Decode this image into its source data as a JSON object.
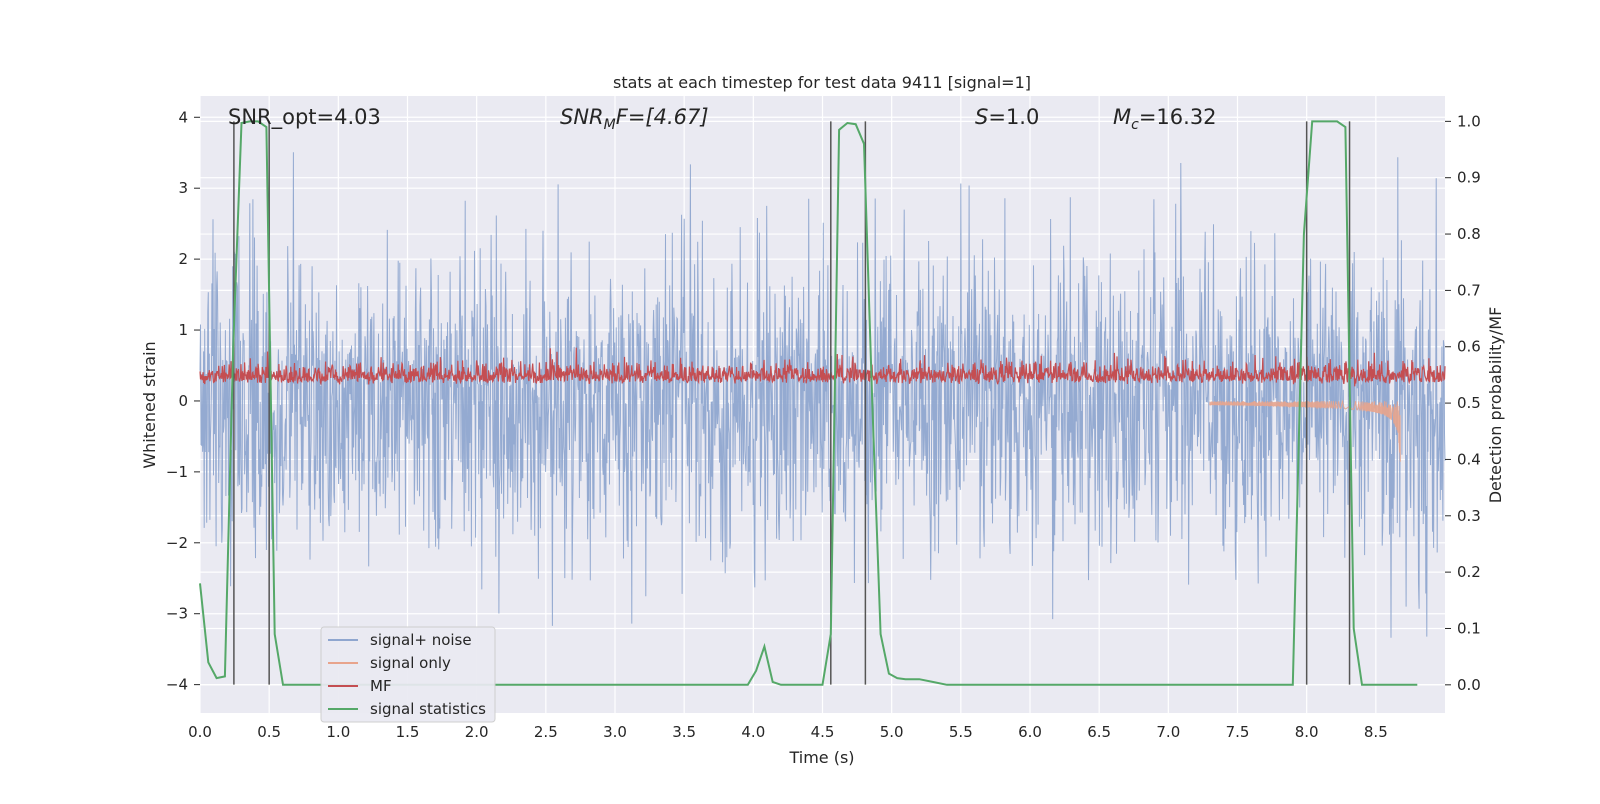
{
  "chart_data": {
    "type": "line",
    "title": "stats at each timestep for test data 9411 [signal=1]",
    "xlabel": "Time (s)",
    "ylabel": "Whitened strain",
    "ylabel_right": "Detection probability/MF",
    "xlim": [
      0.0,
      9.0
    ],
    "ylim": [
      -4.4,
      4.3
    ],
    "ylim_right": [
      -0.05,
      1.045
    ],
    "x_ticks": [
      "0.0",
      "0.5",
      "1.0",
      "1.5",
      "2.0",
      "2.5",
      "3.0",
      "3.5",
      "4.0",
      "4.5",
      "5.0",
      "5.5",
      "6.0",
      "6.5",
      "7.0",
      "7.5",
      "8.0",
      "8.5"
    ],
    "y_ticks": [
      "−4",
      "−3",
      "−2",
      "−1",
      "0",
      "1",
      "2",
      "3",
      "4"
    ],
    "y_ticks_right": [
      "0.0",
      "0.1",
      "0.2",
      "0.3",
      "0.4",
      "0.5",
      "0.6",
      "0.7",
      "0.8",
      "0.9",
      "1.0"
    ],
    "grid": true,
    "legend_position": "lower-left",
    "annotations": {
      "snr_opt": "SNR_opt=4.03",
      "snr_mf_main": "SNR",
      "snr_mf_sub": "M",
      "snr_mf_rest": "F=[4.67]",
      "s_main": "S",
      "s_rest": "=1.0",
      "mc_main": "M",
      "mc_sub": "c",
      "mc_rest": "=16.32"
    },
    "series": [
      {
        "name": "signal+ noise",
        "color": "#8fa6cf",
        "description_values": {
          "amplitude_envelope": [
            -2.5,
            2.5
          ],
          "peaks": [
            3.6,
            -3.9
          ]
        }
      },
      {
        "name": "signal only",
        "color": "#e8a48c",
        "chirp_end_time": 8.68,
        "peak_amplitude": -0.85
      },
      {
        "name": "MF",
        "color": "#c44e52",
        "baseline": 0.3,
        "typical_max": 0.7,
        "max": 1.0
      },
      {
        "name": "signal statistics",
        "color": "#55a868",
        "x": [
          0.0,
          0.06,
          0.12,
          0.18,
          0.24,
          0.3,
          0.36,
          0.42,
          0.48,
          0.54,
          0.6,
          0.66,
          1.0,
          2.0,
          3.0,
          3.9,
          3.96,
          4.02,
          4.08,
          4.14,
          4.2,
          4.26,
          4.32,
          4.5,
          4.56,
          4.62,
          4.68,
          4.74,
          4.8,
          4.86,
          4.92,
          4.98,
          5.04,
          5.1,
          5.2,
          5.3,
          5.4,
          5.5,
          6.0,
          7.0,
          7.9,
          7.98,
          8.04,
          8.1,
          8.16,
          8.22,
          8.28,
          8.34,
          8.4,
          8.46,
          8.52,
          8.8
        ],
        "y": [
          0.18,
          0.04,
          0.012,
          0.015,
          0.6,
          0.997,
          1.0,
          1.0,
          0.99,
          0.09,
          0.0,
          0.0,
          0.0,
          0.0,
          0.0,
          0.0,
          0.0,
          0.025,
          0.068,
          0.005,
          0.0,
          0.0,
          0.0,
          0.0,
          0.09,
          0.985,
          0.997,
          0.995,
          0.96,
          0.5,
          0.09,
          0.02,
          0.012,
          0.01,
          0.01,
          0.005,
          0.0,
          0.0,
          0.0,
          0.0,
          0.0,
          0.8,
          1.0,
          1.0,
          1.0,
          1.0,
          0.99,
          0.1,
          0.0,
          0.0,
          0.0,
          0.0
        ]
      }
    ],
    "vertical_lines_x": [
      0.245,
      0.5,
      4.56,
      4.81,
      8.0,
      8.31
    ]
  },
  "legend": {
    "items": [
      {
        "label": "signal+ noise",
        "color": "#8fa6cf"
      },
      {
        "label": "signal only",
        "color": "#e8a48c"
      },
      {
        "label": "MF",
        "color": "#c44e52"
      },
      {
        "label": "signal statistics",
        "color": "#55a868"
      }
    ]
  },
  "colors": {
    "plot_background": "#eaeaf2",
    "grid": "#ffffff",
    "vline": "#555555"
  }
}
